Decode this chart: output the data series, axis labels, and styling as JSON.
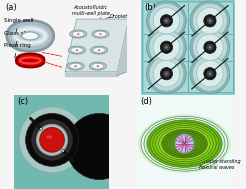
{
  "bg_color": "#f5f5f5",
  "panel_a_label": "(a)",
  "panel_b_label": "(b)",
  "panel_c_label": "(c)",
  "panel_d_label": "(d)",
  "label_single_well": "Single well",
  "label_glass_slide": "Glass slide",
  "label_piezo_ring": "Piezo ring",
  "label_acoustofluidic": "Acoustofluidic\nmulti-well plate",
  "label_droplet": "Droplet",
  "label_circular": "Circular standing\nflexural waves",
  "teal_bg": "#8ecece",
  "teal_bg_c": "#6ab8b0",
  "piezo_red": "#cc0000",
  "well_rim_color": "#a8bcc0",
  "ring_body_color": "#b0c4c8",
  "ring_highlight": "#d8e8ec",
  "plate_face_color": "#d8e4e4",
  "plate_side_color": "#b8c8c8",
  "green_light": "#b8e060",
  "green_mid": "#7ab828",
  "green_dark": "#4a7808",
  "green_outer": "#c8f080"
}
